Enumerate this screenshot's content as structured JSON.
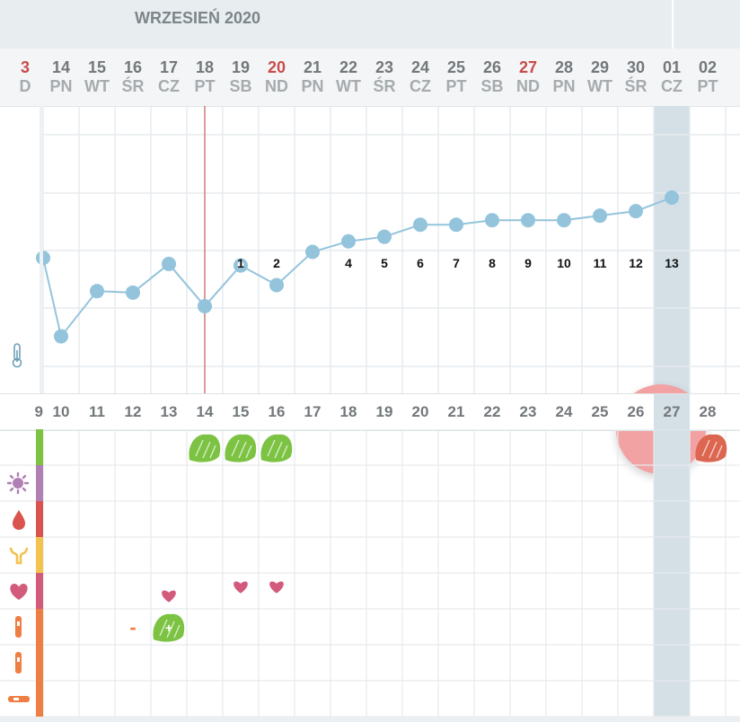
{
  "month_label": "WRZESIEŃ 2020",
  "dates": [
    {
      "num": "3",
      "dow": "D",
      "red": true
    },
    {
      "num": "14",
      "dow": "PN",
      "red": false
    },
    {
      "num": "15",
      "dow": "WT",
      "red": false
    },
    {
      "num": "16",
      "dow": "ŚR",
      "red": false
    },
    {
      "num": "17",
      "dow": "CZ",
      "red": false
    },
    {
      "num": "18",
      "dow": "PT",
      "red": false
    },
    {
      "num": "19",
      "dow": "SB",
      "red": false
    },
    {
      "num": "20",
      "dow": "ND",
      "red": true
    },
    {
      "num": "21",
      "dow": "PN",
      "red": false
    },
    {
      "num": "22",
      "dow": "WT",
      "red": false
    },
    {
      "num": "23",
      "dow": "ŚR",
      "red": false
    },
    {
      "num": "24",
      "dow": "CZ",
      "red": false
    },
    {
      "num": "25",
      "dow": "PT",
      "red": false
    },
    {
      "num": "26",
      "dow": "SB",
      "red": false
    },
    {
      "num": "27",
      "dow": "ND",
      "red": true
    },
    {
      "num": "28",
      "dow": "PN",
      "red": false
    },
    {
      "num": "29",
      "dow": "WT",
      "red": false
    },
    {
      "num": "30",
      "dow": "ŚR",
      "red": false
    },
    {
      "num": "01",
      "dow": "CZ",
      "red": false
    },
    {
      "num": "02",
      "dow": "PT",
      "red": false
    }
  ],
  "cycle_days": [
    "9",
    "10",
    "11",
    "12",
    "13",
    "14",
    "15",
    "16",
    "17",
    "18",
    "19",
    "20",
    "21",
    "22",
    "23",
    "24",
    "25",
    "26",
    "27",
    "28"
  ],
  "temperature": {
    "relative_levels": [
      0.6,
      0.08,
      0.38,
      0.37,
      0.56,
      0.28,
      0.55,
      0.42,
      0.64,
      0.71,
      0.74,
      0.82,
      0.82,
      0.85,
      0.85,
      0.85,
      0.88,
      0.91,
      1.0
    ],
    "counters": [
      "1",
      "2",
      "",
      "4",
      "5",
      "6",
      "7",
      "8",
      "9",
      "10",
      "11",
      "12",
      "13"
    ],
    "ovulation_day": "14",
    "selected_day": "01"
  },
  "rows": [
    {
      "name": "sex-row",
      "icon": "sprout-icon",
      "color": "#7cc243"
    },
    {
      "name": "mood-row",
      "icon": "virus-icon",
      "color": "#b07fb3"
    },
    {
      "name": "bleeding-row",
      "icon": "drop-icon",
      "color": "#d9534f"
    },
    {
      "name": "cervix-row",
      "icon": "uterus-icon",
      "color": "#f3c24f"
    },
    {
      "name": "love-row",
      "icon": "heart-icon",
      "color": "#d25a7a"
    },
    {
      "name": "ovulation-test-row",
      "icon": "ovulation-test-icon",
      "color": "#ef7e45"
    },
    {
      "name": "pregnancy-test-row",
      "icon": "pregnancy-test-icon",
      "color": "#ef7e45"
    },
    {
      "name": "lh-test-row",
      "icon": "strip-test-icon",
      "color": "#ef7e45"
    }
  ],
  "entries": {
    "period_marks_cycle_days": [
      "14",
      "15",
      "16"
    ],
    "next_period_mark_cycle_day": "28",
    "heart_cycle_days": [
      "13",
      "15",
      "16"
    ],
    "test_negative_cycle_day": "12",
    "test_negative_symbol": "-",
    "test_positive_cycle_day": "13",
    "test_positive_symbol": "+"
  },
  "colors": {
    "line": "#93c4dc",
    "red_line": "#cf7d78",
    "selection": "#d4e0e6",
    "green": "#7cc243",
    "red_mark": "#dc6650",
    "heart": "#d25a7a",
    "orange": "#ef7e45"
  }
}
